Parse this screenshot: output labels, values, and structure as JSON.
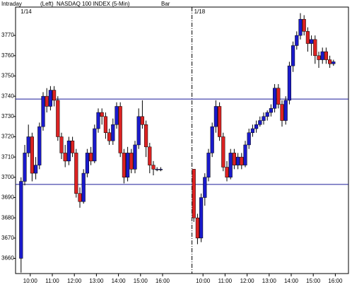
{
  "chart_data": {
    "type": "candlestick",
    "header": [
      "Intraday",
      "(Left)",
      "NASDAQ 100 INDEX  (5-Min)",
      "Bar"
    ],
    "day_labels": [
      "1/14",
      "1/18"
    ],
    "session_break": 47,
    "up_color": "#1a1acc",
    "down_color": "#dd2222",
    "x": [
      0,
      1,
      2,
      3,
      4,
      5,
      6,
      7,
      8,
      9,
      10,
      11,
      12,
      13,
      14,
      15,
      16,
      17,
      18,
      19,
      20,
      21,
      22,
      23,
      24,
      25,
      26,
      27,
      28,
      29,
      30,
      31,
      32,
      33,
      34,
      35,
      36,
      37,
      38,
      47,
      48,
      49,
      50,
      51,
      52,
      53,
      54,
      55,
      56,
      57,
      58,
      59,
      60,
      61,
      62,
      63,
      64,
      65,
      66,
      67,
      68,
      69,
      70,
      71,
      72,
      73,
      74,
      75,
      76,
      77,
      78,
      79,
      80,
      81,
      82,
      83,
      84,
      85
    ],
    "open": [
      3660,
      3698,
      3712,
      3720,
      3702,
      3706,
      3725,
      3740,
      3735,
      3743,
      3738,
      3720,
      3712,
      3708,
      3718,
      3712,
      3692,
      3688,
      3702,
      3712,
      3708,
      3724,
      3732,
      3730,
      3722,
      3718,
      3726,
      3735,
      3712,
      3700,
      3712,
      3704,
      3716,
      3730,
      3726,
      3715,
      3706,
      3704,
      3704,
      3704,
      3680,
      3670,
      3690,
      3700,
      3712,
      3725,
      3735,
      3720,
      3705,
      3700,
      3712,
      3706,
      3710,
      3706,
      3716,
      3722,
      3724,
      3726,
      3728,
      3730,
      3732,
      3734,
      3744,
      3736,
      3728,
      3738,
      3755,
      3765,
      3770,
      3778,
      3772,
      3766,
      3768,
      3760,
      3758,
      3762,
      3758,
      3756
    ],
    "high": [
      3700,
      3716,
      3726,
      3722,
      3710,
      3727,
      3742,
      3744,
      3745,
      3745,
      3740,
      3722,
      3716,
      3720,
      3720,
      3714,
      3695,
      3704,
      3714,
      3715,
      3726,
      3734,
      3734,
      3732,
      3724,
      3729,
      3737,
      3737,
      3714,
      3715,
      3714,
      3718,
      3734,
      3738,
      3728,
      3717,
      3708,
      3705,
      3705,
      3704,
      3682,
      3692,
      3702,
      3714,
      3727,
      3738,
      3737,
      3722,
      3708,
      3714,
      3714,
      3712,
      3712,
      3718,
      3724,
      3726,
      3728,
      3730,
      3732,
      3733,
      3736,
      3746,
      3746,
      3738,
      3740,
      3757,
      3767,
      3772,
      3781,
      3780,
      3774,
      3770,
      3770,
      3762,
      3764,
      3764,
      3760,
      3758
    ],
    "low": [
      3653,
      3696,
      3710,
      3698,
      3699,
      3704,
      3723,
      3732,
      3733,
      3735,
      3718,
      3709,
      3705,
      3706,
      3710,
      3690,
      3685,
      3687,
      3700,
      3706,
      3707,
      3722,
      3726,
      3719,
      3716,
      3716,
      3724,
      3710,
      3697,
      3698,
      3702,
      3702,
      3714,
      3724,
      3710,
      3702,
      3701,
      3703,
      3703,
      3678,
      3667,
      3668,
      3686,
      3698,
      3710,
      3722,
      3718,
      3703,
      3698,
      3699,
      3704,
      3704,
      3704,
      3705,
      3714,
      3720,
      3722,
      3725,
      3726,
      3728,
      3730,
      3732,
      3734,
      3725,
      3726,
      3736,
      3752,
      3763,
      3768,
      3770,
      3762,
      3760,
      3756,
      3754,
      3756,
      3756,
      3754,
      3755
    ],
    "close": [
      3698,
      3712,
      3720,
      3702,
      3706,
      3725,
      3740,
      3735,
      3743,
      3738,
      3720,
      3712,
      3708,
      3718,
      3712,
      3692,
      3688,
      3702,
      3712,
      3708,
      3724,
      3732,
      3730,
      3722,
      3718,
      3726,
      3735,
      3712,
      3700,
      3712,
      3704,
      3716,
      3730,
      3726,
      3715,
      3706,
      3704,
      3704,
      3704,
      3680,
      3670,
      3690,
      3700,
      3712,
      3725,
      3735,
      3720,
      3705,
      3700,
      3712,
      3706,
      3710,
      3706,
      3716,
      3722,
      3724,
      3726,
      3728,
      3730,
      3732,
      3734,
      3744,
      3736,
      3728,
      3738,
      3755,
      3765,
      3770,
      3778,
      3772,
      3766,
      3768,
      3760,
      3758,
      3762,
      3758,
      3756,
      3757
    ],
    "hlines": [
      3738.6,
      3696.5
    ],
    "hline_color": "#1a1a99",
    "xlim": [
      -1,
      89
    ],
    "ylim": [
      3652.5,
      3784
    ],
    "yticks": [
      3660,
      3670,
      3680,
      3690,
      3700,
      3710,
      3720,
      3730,
      3740,
      3750,
      3760,
      3770
    ],
    "xticks": [
      {
        "value": 3,
        "label": "10:00"
      },
      {
        "value": 9,
        "label": "11:00"
      },
      {
        "value": 15,
        "label": "12:00"
      },
      {
        "value": 21,
        "label": "13:00"
      },
      {
        "value": 27,
        "label": "14:00"
      },
      {
        "value": 33,
        "label": "15:00"
      },
      {
        "value": 39,
        "label": "16:00"
      },
      {
        "value": 50,
        "label": "10:00"
      },
      {
        "value": 56,
        "label": "11:00"
      },
      {
        "value": 62,
        "label": "12:00"
      },
      {
        "value": 68,
        "label": "13:00"
      },
      {
        "value": 74,
        "label": "14:00"
      },
      {
        "value": 80,
        "label": "15:00"
      },
      {
        "value": 86,
        "label": "16:00"
      }
    ]
  }
}
